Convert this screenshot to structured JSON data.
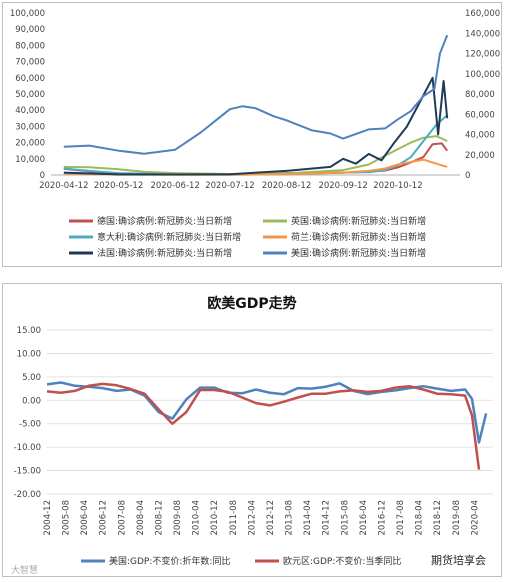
{
  "chart_data": [
    {
      "type": "line",
      "title": "",
      "left_axis": {
        "ticks": [
          "0",
          "10,000",
          "20,000",
          "30,000",
          "40,000",
          "50,000",
          "60,000",
          "70,000",
          "80,000",
          "90,000",
          "100,000"
        ],
        "ylim": [
          0,
          100000
        ]
      },
      "right_axis": {
        "ticks": [
          "0",
          "20,000",
          "40,000",
          "60,000",
          "80,000",
          "100,000",
          "120,000",
          "140,000",
          "160,000"
        ],
        "ylim": [
          0,
          160000
        ]
      },
      "x_ticks": [
        "2020-04-12",
        "2020-05-12",
        "2020-06-12",
        "2020-07-12",
        "2020-08-12",
        "2020-09-12",
        "2020-10-12"
      ],
      "legend_position": "bottom",
      "series": [
        {
          "name": "德国:确诊病例:新冠肺炎:当日新增",
          "color": "#c0504d",
          "axis": "left",
          "x": [
            "2020-04-12",
            "2020-04-26",
            "2020-05-12",
            "2020-06-12",
            "2020-07-12",
            "2020-08-12",
            "2020-09-12",
            "2020-09-26",
            "2020-10-05",
            "2020-10-12",
            "2020-10-19",
            "2020-10-26",
            "2020-10-31",
            "2020-11-05",
            "2020-11-08"
          ],
          "y": [
            3800,
            2200,
            900,
            400,
            400,
            1200,
            1500,
            2000,
            2800,
            4700,
            7800,
            11200,
            19000,
            19500,
            15000
          ]
        },
        {
          "name": "英国:确诊病例:新冠肺炎:当日新增",
          "color": "#9bbb59",
          "axis": "left",
          "x": [
            "2020-04-12",
            "2020-04-26",
            "2020-05-12",
            "2020-05-26",
            "2020-06-12",
            "2020-07-12",
            "2020-08-12",
            "2020-09-12",
            "2020-09-26",
            "2020-10-05",
            "2020-10-12",
            "2020-10-19",
            "2020-10-26",
            "2020-11-02",
            "2020-11-08"
          ],
          "y": [
            5000,
            4800,
            3500,
            2000,
            1200,
            600,
            1000,
            3000,
            6500,
            12000,
            16000,
            20000,
            23000,
            24000,
            21000
          ]
        },
        {
          "name": "意大利:确诊病例:新冠肺炎:当日新增",
          "color": "#4bacc6",
          "axis": "left",
          "x": [
            "2020-04-12",
            "2020-04-26",
            "2020-05-12",
            "2020-06-12",
            "2020-07-12",
            "2020-08-12",
            "2020-09-12",
            "2020-09-26",
            "2020-10-05",
            "2020-10-12",
            "2020-10-19",
            "2020-10-26",
            "2020-11-02",
            "2020-11-08"
          ],
          "y": [
            4000,
            2500,
            1200,
            300,
            200,
            500,
            1500,
            1800,
            3000,
            6000,
            11000,
            21000,
            31000,
            37000
          ]
        },
        {
          "name": "荷兰:确诊病例:新冠肺炎:当日新增",
          "color": "#f79646",
          "axis": "left",
          "x": [
            "2020-04-12",
            "2020-05-12",
            "2020-06-12",
            "2020-07-12",
            "2020-08-12",
            "2020-09-12",
            "2020-09-26",
            "2020-10-05",
            "2020-10-12",
            "2020-10-19",
            "2020-10-26",
            "2020-11-02",
            "2020-11-08"
          ],
          "y": [
            1000,
            200,
            100,
            100,
            500,
            1500,
            2500,
            4000,
            6500,
            8000,
            9500,
            7000,
            5000
          ]
        },
        {
          "name": "法国:确诊病例:新冠肺炎:当日新增",
          "color": "#1f3b57",
          "axis": "left",
          "x": [
            "2020-04-12",
            "2020-05-12",
            "2020-06-12",
            "2020-07-12",
            "2020-08-12",
            "2020-09-05",
            "2020-09-12",
            "2020-09-19",
            "2020-09-26",
            "2020-10-03",
            "2020-10-10",
            "2020-10-17",
            "2020-10-24",
            "2020-10-31",
            "2020-11-03",
            "2020-11-06",
            "2020-11-08"
          ],
          "y": [
            1500,
            400,
            300,
            500,
            2500,
            5000,
            10000,
            7000,
            13000,
            9000,
            20000,
            30000,
            45000,
            60000,
            25000,
            58000,
            35000
          ]
        },
        {
          "name": "美国:确诊病例:新冠肺炎:当日新增",
          "color": "#4f81bd",
          "axis": "right",
          "x": [
            "2020-04-12",
            "2020-04-26",
            "2020-05-12",
            "2020-05-26",
            "2020-06-12",
            "2020-06-26",
            "2020-07-05",
            "2020-07-12",
            "2020-07-19",
            "2020-07-26",
            "2020-08-05",
            "2020-08-12",
            "2020-08-26",
            "2020-09-05",
            "2020-09-12",
            "2020-09-26",
            "2020-10-05",
            "2020-10-12",
            "2020-10-19",
            "2020-10-26",
            "2020-11-01",
            "2020-11-04",
            "2020-11-08"
          ],
          "y": [
            28000,
            29000,
            24000,
            21000,
            25000,
            42000,
            55000,
            65000,
            68000,
            66000,
            58000,
            54000,
            44000,
            41000,
            36000,
            45000,
            46000,
            55000,
            63000,
            78000,
            85000,
            120000,
            138000
          ]
        }
      ]
    },
    {
      "type": "line",
      "title": "欧美GDP走势",
      "ylim": [
        -20,
        15
      ],
      "y_ticks": [
        "15.00",
        "10.00",
        "5.00",
        "0.00",
        "-5.00",
        "-10.00",
        "-15.00",
        "-20.00"
      ],
      "x_ticks": [
        "2004-12",
        "2005-08",
        "2006-04",
        "2006-12",
        "2007-08",
        "2008-04",
        "2008-12",
        "2009-08",
        "2010-04",
        "2010-12",
        "2011-08",
        "2012-04",
        "2012-12",
        "2013-08",
        "2014-04",
        "2014-12",
        "2015-08",
        "2016-04",
        "2016-12",
        "2017-08",
        "2018-04",
        "2018-12",
        "2019-08",
        "2020-04"
      ],
      "legend_position": "bottom",
      "series": [
        {
          "name": "美国:GDP:不变价:折年数:同比",
          "color": "#4f81bd",
          "x": [
            "2004-12",
            "2005-06",
            "2005-12",
            "2006-06",
            "2006-12",
            "2007-06",
            "2007-12",
            "2008-06",
            "2008-12",
            "2009-06",
            "2009-12",
            "2010-06",
            "2010-12",
            "2011-06",
            "2011-12",
            "2012-06",
            "2012-12",
            "2013-06",
            "2013-12",
            "2014-06",
            "2014-12",
            "2015-06",
            "2015-12",
            "2016-06",
            "2016-12",
            "2017-06",
            "2017-12",
            "2018-06",
            "2018-12",
            "2019-06",
            "2019-12",
            "2020-03",
            "2020-06",
            "2020-09"
          ],
          "y": [
            3.4,
            3.8,
            3.1,
            2.9,
            2.6,
            2.0,
            2.3,
            1.0,
            -2.5,
            -3.9,
            0.2,
            2.7,
            2.7,
            1.6,
            1.5,
            2.3,
            1.6,
            1.3,
            2.6,
            2.5,
            2.9,
            3.6,
            2.0,
            1.3,
            1.8,
            2.1,
            2.6,
            3.0,
            2.5,
            2.0,
            2.3,
            0.3,
            -9.0,
            -2.8
          ]
        },
        {
          "name": "欧元区:GDP:不变价:当季同比",
          "color": "#c0504d",
          "x": [
            "2004-12",
            "2005-06",
            "2005-12",
            "2006-06",
            "2006-12",
            "2007-06",
            "2007-12",
            "2008-06",
            "2008-12",
            "2009-06",
            "2009-12",
            "2010-06",
            "2010-12",
            "2011-06",
            "2011-12",
            "2012-06",
            "2012-12",
            "2013-06",
            "2013-12",
            "2014-06",
            "2014-12",
            "2015-06",
            "2015-12",
            "2016-06",
            "2016-12",
            "2017-06",
            "2017-12",
            "2018-06",
            "2018-12",
            "2019-06",
            "2019-12",
            "2020-03",
            "2020-06"
          ],
          "y": [
            1.9,
            1.6,
            2.0,
            3.1,
            3.5,
            3.2,
            2.4,
            1.4,
            -1.9,
            -5.0,
            -2.5,
            2.2,
            2.2,
            1.8,
            0.6,
            -0.6,
            -1.1,
            -0.3,
            0.6,
            1.4,
            1.4,
            1.9,
            2.1,
            1.8,
            2.0,
            2.7,
            3.0,
            2.3,
            1.4,
            1.3,
            1.0,
            -3.2,
            -14.8
          ]
        }
      ]
    }
  ],
  "watermark": {
    "left": "大智慧",
    "right": "期货培享会"
  }
}
